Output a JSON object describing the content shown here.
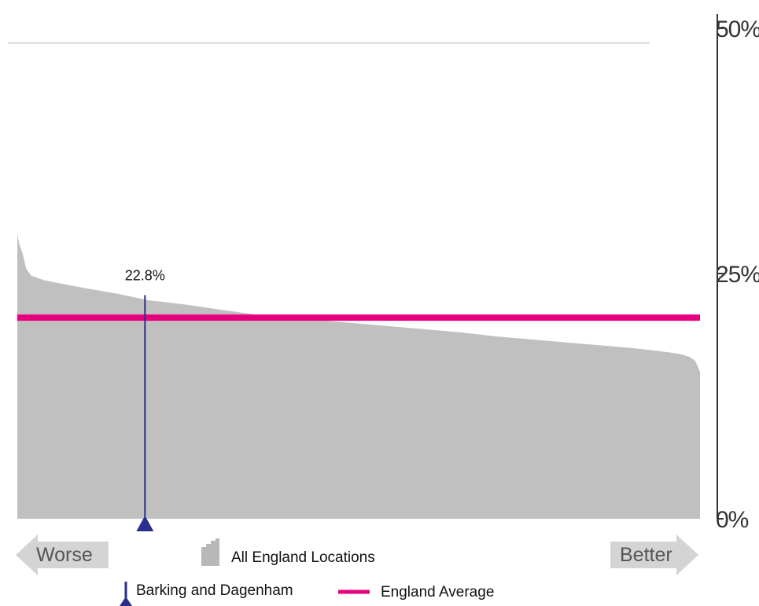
{
  "chart_data": {
    "type": "area",
    "title": "",
    "xlabel": "",
    "ylabel": "",
    "ylim": [
      0,
      50
    ],
    "y_ticks": [
      {
        "value": 50,
        "label": "50%"
      },
      {
        "value": 25,
        "label": "25%"
      },
      {
        "value": 0,
        "label": "0%"
      }
    ],
    "series": [
      {
        "name": "All England Locations",
        "color": "#c0c0c0",
        "profile": [
          [
            0.0,
            29.0
          ],
          [
            0.003,
            28.0
          ],
          [
            0.008,
            27.0
          ],
          [
            0.013,
            25.5
          ],
          [
            0.02,
            24.8
          ],
          [
            0.04,
            24.3
          ],
          [
            0.07,
            23.9
          ],
          [
            0.1,
            23.5
          ],
          [
            0.15,
            22.9
          ],
          [
            0.19,
            22.3
          ],
          [
            0.25,
            21.8
          ],
          [
            0.3,
            21.3
          ],
          [
            0.35,
            20.8
          ],
          [
            0.4,
            20.5
          ],
          [
            0.45,
            20.2
          ],
          [
            0.5,
            19.9
          ],
          [
            0.55,
            19.6
          ],
          [
            0.6,
            19.3
          ],
          [
            0.65,
            19.0
          ],
          [
            0.7,
            18.6
          ],
          [
            0.75,
            18.3
          ],
          [
            0.8,
            18.0
          ],
          [
            0.85,
            17.7
          ],
          [
            0.9,
            17.4
          ],
          [
            0.94,
            17.1
          ],
          [
            0.97,
            16.8
          ],
          [
            0.985,
            16.5
          ],
          [
            0.993,
            16.1
          ],
          [
            1.0,
            15.0
          ]
        ]
      }
    ],
    "england_average": {
      "name": "England Average",
      "value": 20.5,
      "color": "#e6007e"
    },
    "highlight": {
      "name": "Barking and Dagenham",
      "value": 22.8,
      "label": "22.8%",
      "rank_fraction": 0.187,
      "color": "#2b2e8f"
    },
    "arrows": {
      "worse": "Worse",
      "better": "Better"
    },
    "reference_line": {
      "value": 48.5,
      "color": "#d9d9d9"
    }
  }
}
